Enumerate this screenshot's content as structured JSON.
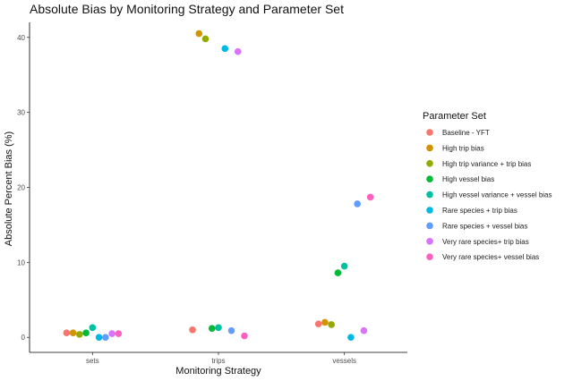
{
  "chart_data": {
    "type": "scatter",
    "title": "Absolute Bias by Monitoring Strategy and Parameter Set",
    "xlabel": "Monitoring Strategy",
    "ylabel": "Absolute Percent Bias (%)",
    "categories": [
      "sets",
      "trips",
      "vessels"
    ],
    "ylim": [
      -2,
      42
    ],
    "yticks": [
      0,
      10,
      20,
      30,
      40
    ],
    "grid": false,
    "legend_title": "Parameter Set",
    "legend_position": "right",
    "series": [
      {
        "name": "Baseline - YFT",
        "color": "#F8766D",
        "values": [
          0.6,
          1.0,
          1.8
        ]
      },
      {
        "name": "High trip bias",
        "color": "#D39200",
        "values": [
          0.6,
          40.5,
          2.0
        ]
      },
      {
        "name": "High trip variance + trip bias",
        "color": "#93AA00",
        "values": [
          0.4,
          39.8,
          1.7
        ]
      },
      {
        "name": "High vessel bias",
        "color": "#00BA38",
        "values": [
          0.6,
          1.2,
          8.6
        ]
      },
      {
        "name": "High vessel variance + vessel bias",
        "color": "#00C19F",
        "values": [
          1.3,
          1.3,
          9.5
        ]
      },
      {
        "name": "Rare species + trip bias",
        "color": "#00B9E3",
        "values": [
          0.0,
          38.5,
          0.0
        ]
      },
      {
        "name": "Rare species + vessel bias",
        "color": "#619CFF",
        "values": [
          0.0,
          0.9,
          17.8
        ]
      },
      {
        "name": "Very rare species+ trip bias",
        "color": "#DB72FB",
        "values": [
          0.5,
          38.1,
          0.9
        ]
      },
      {
        "name": "Very rare species+ vessel bias",
        "color": "#FF61C3",
        "values": [
          0.5,
          0.2,
          18.7
        ]
      }
    ]
  }
}
